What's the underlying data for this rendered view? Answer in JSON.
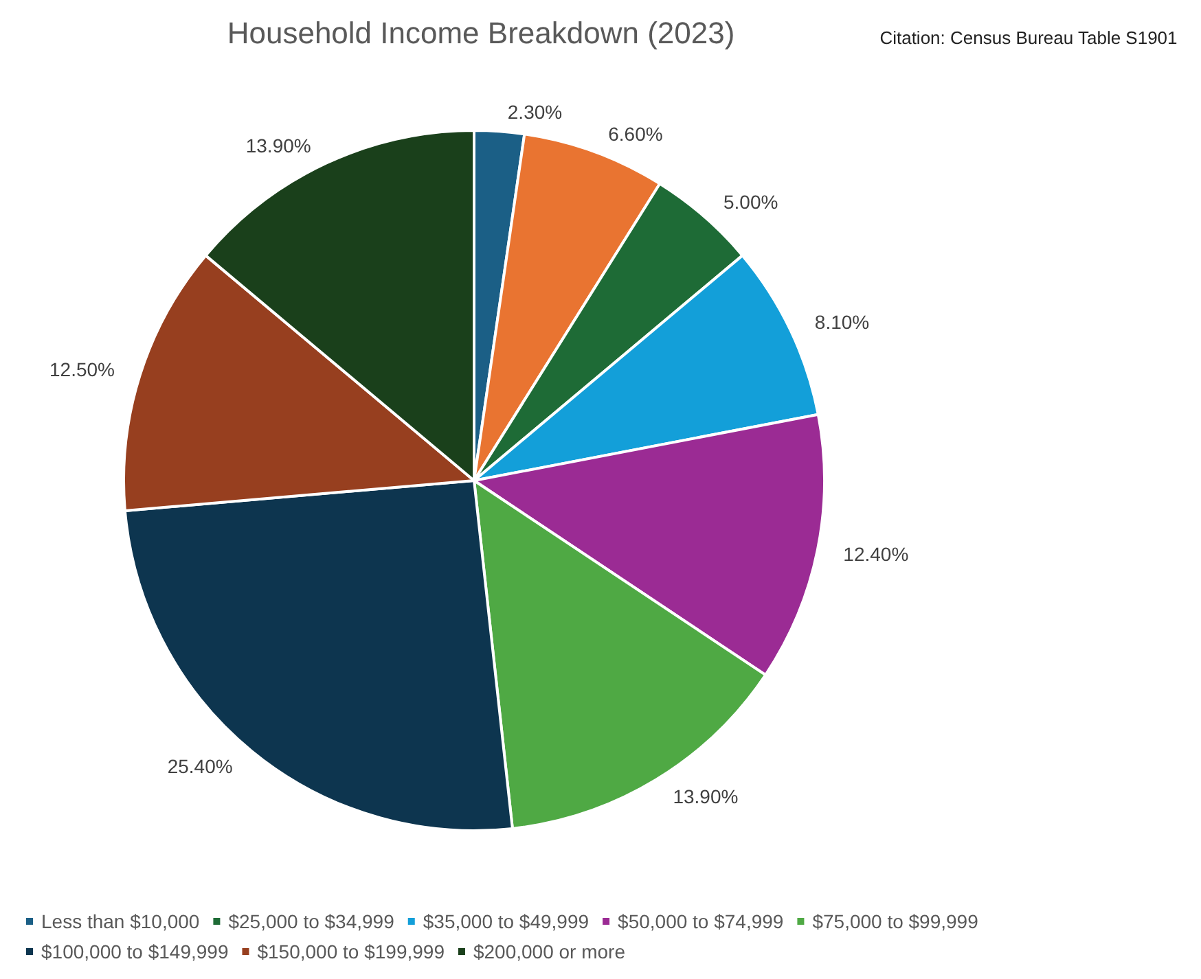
{
  "chart_data": {
    "type": "pie",
    "title": "Household Income Breakdown (2023)",
    "annotations": [
      "Citation: Census Bureau Table S1901"
    ],
    "categories": [
      "Less than $10,000",
      null,
      "$25,000 to $34,999",
      "$35,000 to $49,999",
      "$50,000 to $74,999",
      "$75,000 to $99,999",
      "$100,000 to $149,999",
      "$150,000 to $199,999",
      "$200,000 or more"
    ],
    "values": [
      2.3,
      6.6,
      5.0,
      8.1,
      12.4,
      13.9,
      25.4,
      12.5,
      13.9
    ],
    "value_labels": [
      "2.30%",
      "6.60%",
      "5.00%",
      "8.10%",
      "12.40%",
      "13.90%",
      "25.40%",
      "12.50%",
      "13.90%"
    ],
    "colors": [
      "#1b5f86",
      "#e97431",
      "#1e6b36",
      "#139fd9",
      "#9b2b94",
      "#4fa944",
      "#0d354f",
      "#973f1f",
      "#1a401b"
    ],
    "legend": "bottom"
  }
}
